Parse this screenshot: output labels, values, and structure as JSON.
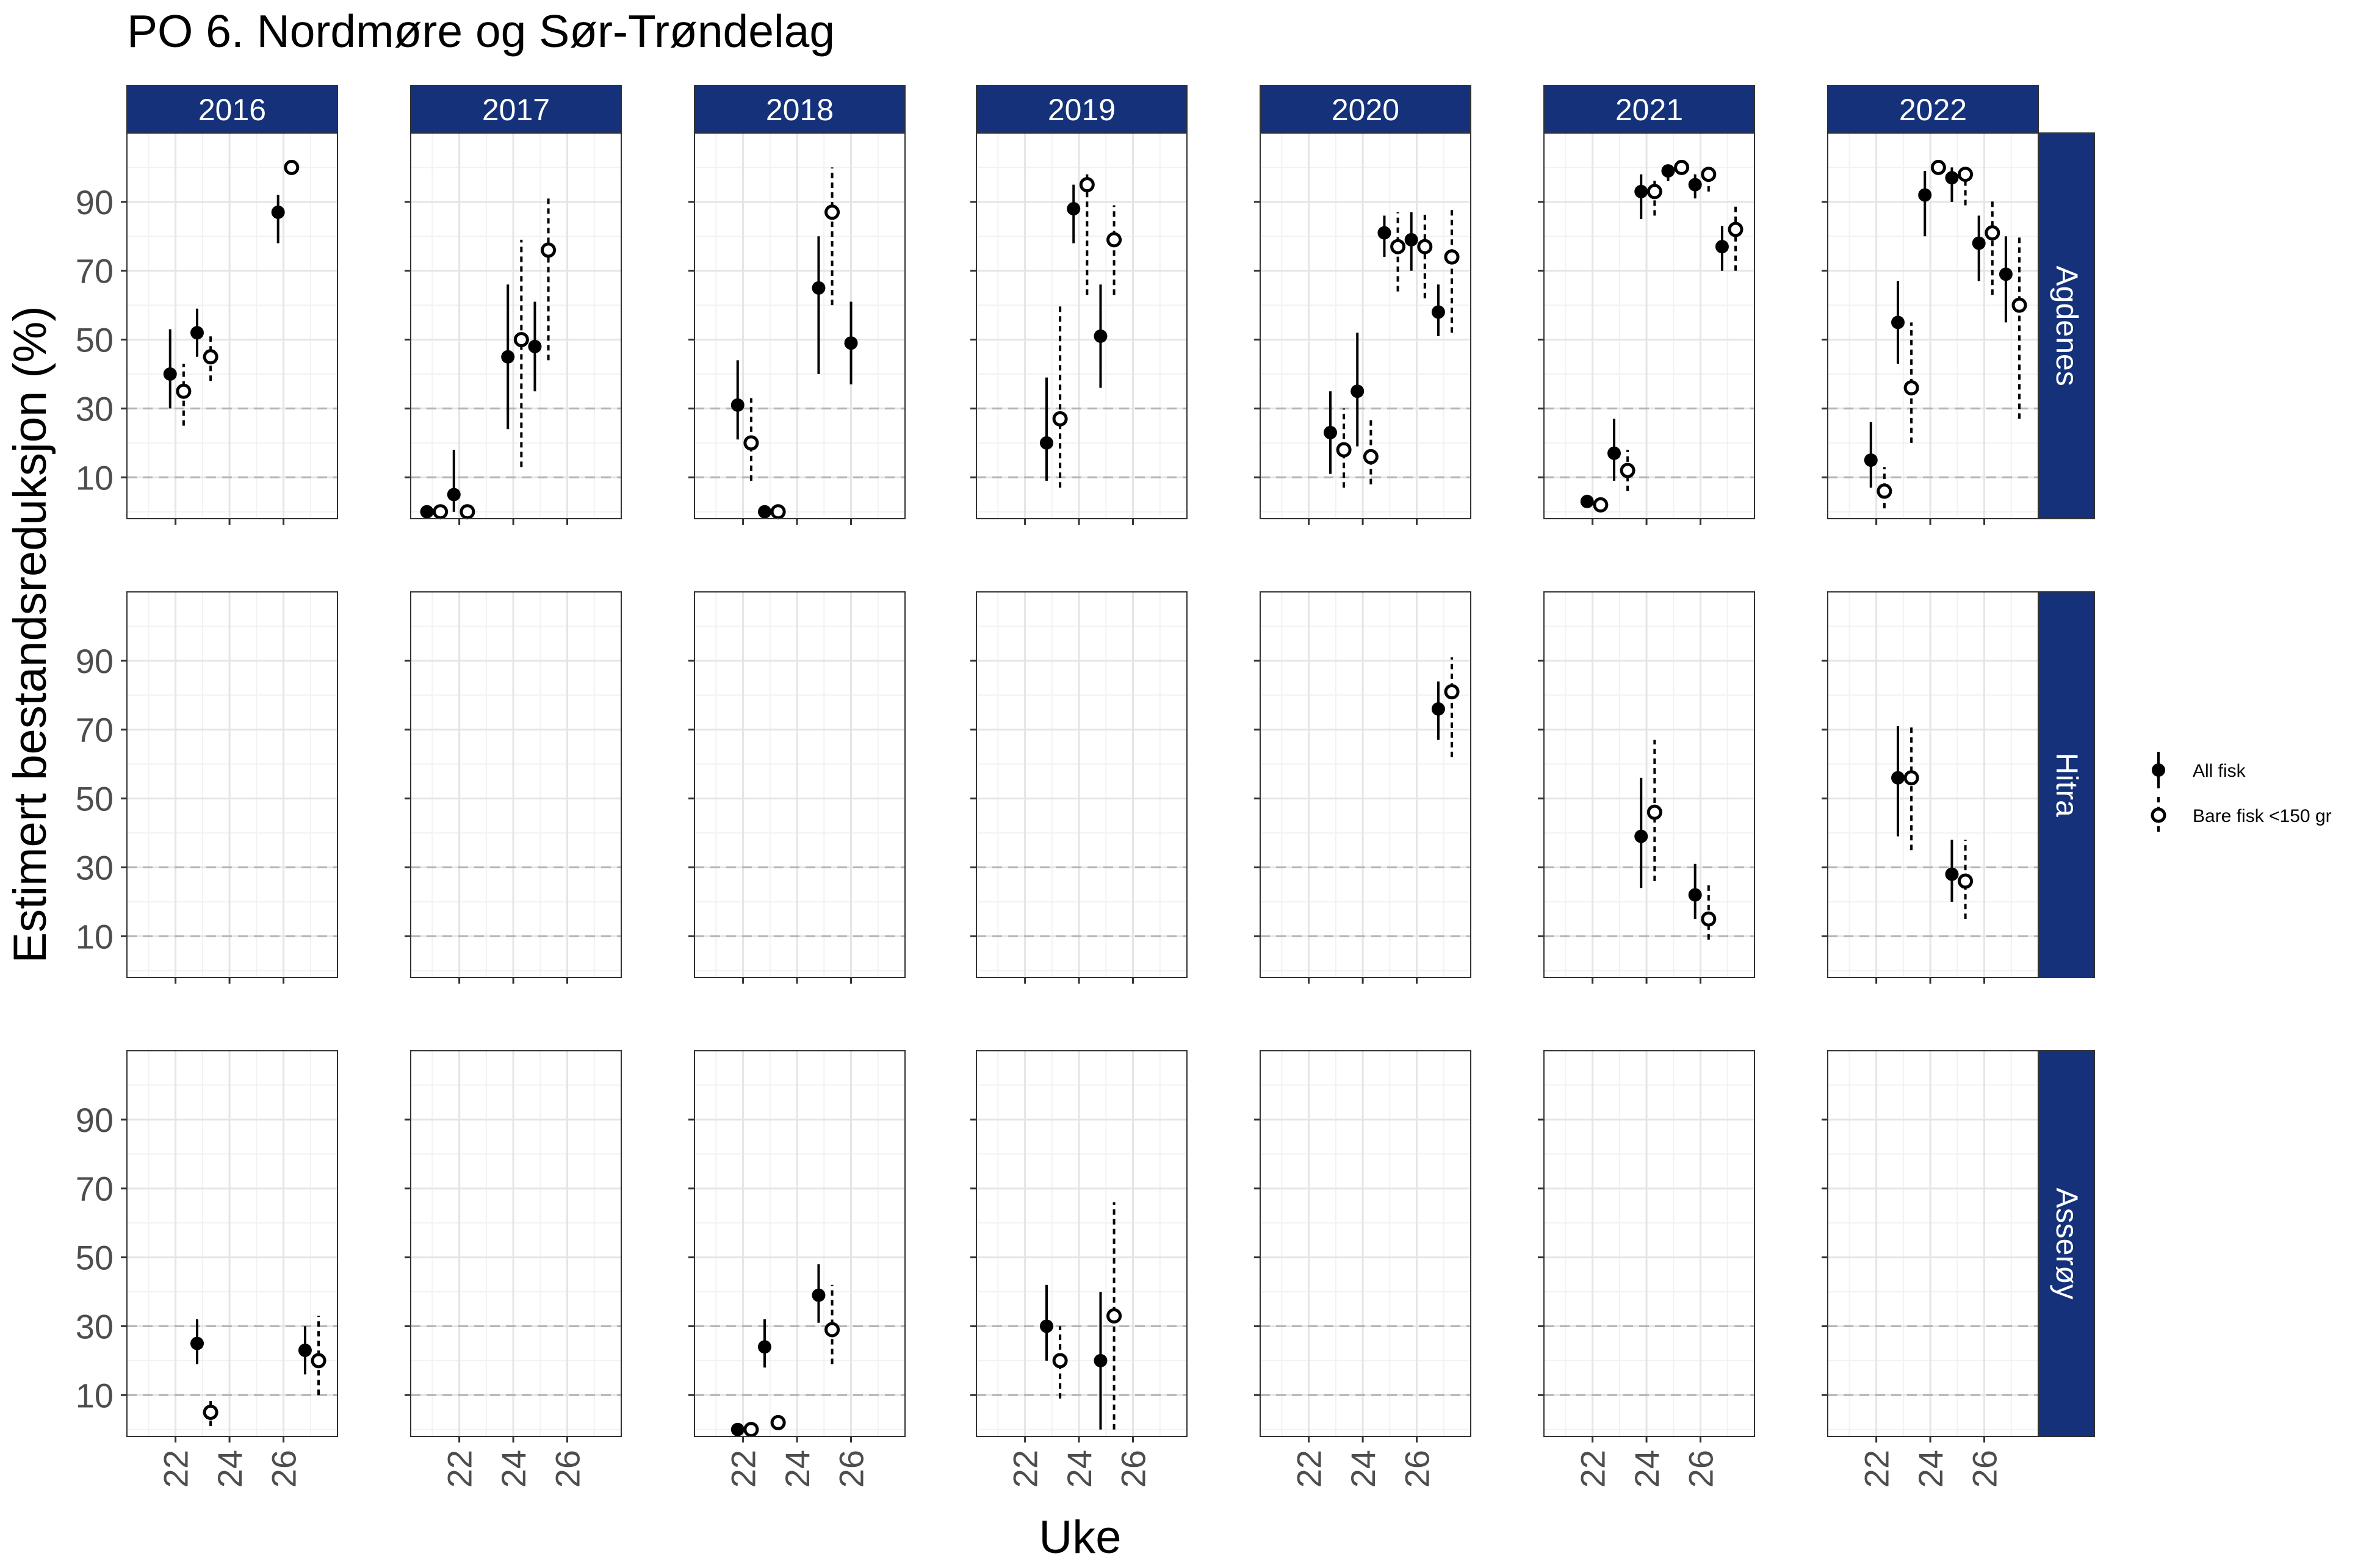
{
  "title": "PO 6. Nordmøre og Sør-Trøndelag",
  "chart_data": {
    "type": "scatter",
    "title": "PO 6. Nordmøre og Sør-Trøndelag",
    "xlabel": "Uke",
    "ylabel": "Estimert bestandsreduksjon (%)",
    "xlim": [
      20.2,
      28
    ],
    "ylim": [
      -2,
      110
    ],
    "xticks": [
      22,
      24,
      26
    ],
    "yticks": [
      10,
      30,
      50,
      70,
      90
    ],
    "reference_lines": [
      10,
      30
    ],
    "legend_position": "right",
    "years": [
      "2016",
      "2017",
      "2018",
      "2019",
      "2020",
      "2021",
      "2022"
    ],
    "locations": [
      "Agdenes",
      "Hitra",
      "Asserøy"
    ],
    "legend": {
      "all": "All fisk",
      "small": "Bare fisk <150 gr"
    },
    "series": [
      {
        "location": "Agdenes",
        "panels": [
          {
            "year": "2016",
            "points": [
              {
                "type": "all",
                "x": 21.8,
                "y": 40,
                "lo": 30,
                "hi": 53
              },
              {
                "type": "small",
                "x": 22.3,
                "y": 35,
                "lo": 25,
                "hi": 43
              },
              {
                "type": "all",
                "x": 22.8,
                "y": 52,
                "lo": 45,
                "hi": 59
              },
              {
                "type": "small",
                "x": 23.3,
                "y": 45,
                "lo": 38,
                "hi": 52
              },
              {
                "type": "all",
                "x": 25.8,
                "y": 87,
                "lo": 78,
                "hi": 92
              },
              {
                "type": "small",
                "x": 26.3,
                "y": 100,
                "lo": 100,
                "hi": 100
              }
            ]
          },
          {
            "year": "2017",
            "points": [
              {
                "type": "all",
                "x": 20.8,
                "y": 0,
                "lo": 0,
                "hi": 0
              },
              {
                "type": "small",
                "x": 21.3,
                "y": 0,
                "lo": 0,
                "hi": 0
              },
              {
                "type": "all",
                "x": 21.8,
                "y": 5,
                "lo": 0,
                "hi": 18
              },
              {
                "type": "small",
                "x": 22.3,
                "y": 0,
                "lo": 0,
                "hi": 0
              },
              {
                "type": "all",
                "x": 23.8,
                "y": 45,
                "lo": 24,
                "hi": 66
              },
              {
                "type": "small",
                "x": 24.3,
                "y": 50,
                "lo": 13,
                "hi": 79
              },
              {
                "type": "all",
                "x": 24.8,
                "y": 48,
                "lo": 35,
                "hi": 61
              },
              {
                "type": "small",
                "x": 25.3,
                "y": 76,
                "lo": 44,
                "hi": 92
              }
            ]
          },
          {
            "year": "2018",
            "points": [
              {
                "type": "all",
                "x": 21.8,
                "y": 31,
                "lo": 21,
                "hi": 44
              },
              {
                "type": "small",
                "x": 22.3,
                "y": 20,
                "lo": 9,
                "hi": 33
              },
              {
                "type": "all",
                "x": 22.8,
                "y": 0,
                "lo": 0,
                "hi": 0
              },
              {
                "type": "small",
                "x": 23.3,
                "y": 0,
                "lo": 0,
                "hi": 0
              },
              {
                "type": "all",
                "x": 24.8,
                "y": 65,
                "lo": 40,
                "hi": 80
              },
              {
                "type": "small",
                "x": 25.3,
                "y": 87,
                "lo": 60,
                "hi": 100
              },
              {
                "type": "all",
                "x": 26.0,
                "y": 49,
                "lo": 37,
                "hi": 61
              }
            ]
          },
          {
            "year": "2019",
            "points": [
              {
                "type": "all",
                "x": 22.8,
                "y": 20,
                "lo": 9,
                "hi": 39
              },
              {
                "type": "small",
                "x": 23.3,
                "y": 27,
                "lo": 7,
                "hi": 60
              },
              {
                "type": "all",
                "x": 23.8,
                "y": 88,
                "lo": 78,
                "hi": 95
              },
              {
                "type": "small",
                "x": 24.3,
                "y": 95,
                "lo": 63,
                "hi": 98
              },
              {
                "type": "all",
                "x": 24.8,
                "y": 51,
                "lo": 36,
                "hi": 66
              },
              {
                "type": "small",
                "x": 25.3,
                "y": 79,
                "lo": 63,
                "hi": 89
              }
            ]
          },
          {
            "year": "2020",
            "points": [
              {
                "type": "all",
                "x": 22.8,
                "y": 23,
                "lo": 11,
                "hi": 35
              },
              {
                "type": "small",
                "x": 23.3,
                "y": 18,
                "lo": 7,
                "hi": 30
              },
              {
                "type": "all",
                "x": 23.8,
                "y": 35,
                "lo": 19,
                "hi": 52
              },
              {
                "type": "small",
                "x": 24.3,
                "y": 16,
                "lo": 8,
                "hi": 27
              },
              {
                "type": "all",
                "x": 24.8,
                "y": 81,
                "lo": 74,
                "hi": 86
              },
              {
                "type": "small",
                "x": 25.3,
                "y": 77,
                "lo": 64,
                "hi": 87
              },
              {
                "type": "all",
                "x": 25.8,
                "y": 79,
                "lo": 70,
                "hi": 87
              },
              {
                "type": "small",
                "x": 26.3,
                "y": 77,
                "lo": 62,
                "hi": 87
              },
              {
                "type": "all",
                "x": 26.8,
                "y": 58,
                "lo": 51,
                "hi": 66
              },
              {
                "type": "small",
                "x": 27.3,
                "y": 74,
                "lo": 52,
                "hi": 88
              }
            ]
          },
          {
            "year": "2021",
            "points": [
              {
                "type": "all",
                "x": 21.8,
                "y": 3,
                "lo": 2,
                "hi": 4
              },
              {
                "type": "small",
                "x": 22.3,
                "y": 2,
                "lo": 1,
                "hi": 3
              },
              {
                "type": "all",
                "x": 22.8,
                "y": 17,
                "lo": 9,
                "hi": 27
              },
              {
                "type": "small",
                "x": 23.3,
                "y": 12,
                "lo": 6,
                "hi": 18
              },
              {
                "type": "all",
                "x": 23.8,
                "y": 93,
                "lo": 85,
                "hi": 98
              },
              {
                "type": "small",
                "x": 24.3,
                "y": 93,
                "lo": 86,
                "hi": 97
              },
              {
                "type": "all",
                "x": 24.8,
                "y": 99,
                "lo": 96,
                "hi": 100
              },
              {
                "type": "small",
                "x": 25.3,
                "y": 100,
                "lo": 100,
                "hi": 100
              },
              {
                "type": "all",
                "x": 25.8,
                "y": 95,
                "lo": 91,
                "hi": 98
              },
              {
                "type": "small",
                "x": 26.3,
                "y": 98,
                "lo": 93,
                "hi": 100
              },
              {
                "type": "all",
                "x": 26.8,
                "y": 77,
                "lo": 70,
                "hi": 83
              },
              {
                "type": "small",
                "x": 27.3,
                "y": 82,
                "lo": 70,
                "hi": 89
              }
            ]
          },
          {
            "year": "2022",
            "points": [
              {
                "type": "all",
                "x": 21.8,
                "y": 15,
                "lo": 7,
                "hi": 26
              },
              {
                "type": "small",
                "x": 22.3,
                "y": 6,
                "lo": 1,
                "hi": 13
              },
              {
                "type": "all",
                "x": 22.8,
                "y": 55,
                "lo": 43,
                "hi": 67
              },
              {
                "type": "small",
                "x": 23.3,
                "y": 36,
                "lo": 20,
                "hi": 55
              },
              {
                "type": "all",
                "x": 23.8,
                "y": 92,
                "lo": 80,
                "hi": 99
              },
              {
                "type": "small",
                "x": 24.3,
                "y": 100,
                "lo": 100,
                "hi": 100
              },
              {
                "type": "all",
                "x": 24.8,
                "y": 97,
                "lo": 90,
                "hi": 100
              },
              {
                "type": "small",
                "x": 25.3,
                "y": 98,
                "lo": 89,
                "hi": 100
              },
              {
                "type": "all",
                "x": 25.8,
                "y": 78,
                "lo": 67,
                "hi": 86
              },
              {
                "type": "small",
                "x": 26.3,
                "y": 81,
                "lo": 63,
                "hi": 91
              },
              {
                "type": "all",
                "x": 26.8,
                "y": 69,
                "lo": 55,
                "hi": 80
              },
              {
                "type": "small",
                "x": 27.3,
                "y": 60,
                "lo": 27,
                "hi": 80
              }
            ]
          }
        ]
      },
      {
        "location": "Hitra",
        "panels": [
          {
            "year": "2016",
            "points": []
          },
          {
            "year": "2017",
            "points": []
          },
          {
            "year": "2018",
            "points": []
          },
          {
            "year": "2019",
            "points": []
          },
          {
            "year": "2020",
            "points": [
              {
                "type": "all",
                "x": 26.8,
                "y": 76,
                "lo": 67,
                "hi": 84
              },
              {
                "type": "small",
                "x": 27.3,
                "y": 81,
                "lo": 62,
                "hi": 91
              }
            ]
          },
          {
            "year": "2021",
            "points": [
              {
                "type": "all",
                "x": 23.8,
                "y": 39,
                "lo": 24,
                "hi": 56
              },
              {
                "type": "small",
                "x": 24.3,
                "y": 46,
                "lo": 26,
                "hi": 67
              },
              {
                "type": "all",
                "x": 25.8,
                "y": 22,
                "lo": 15,
                "hi": 31
              },
              {
                "type": "small",
                "x": 26.3,
                "y": 15,
                "lo": 9,
                "hi": 26
              }
            ]
          },
          {
            "year": "2022",
            "points": [
              {
                "type": "all",
                "x": 22.8,
                "y": 56,
                "lo": 39,
                "hi": 71
              },
              {
                "type": "small",
                "x": 23.3,
                "y": 56,
                "lo": 35,
                "hi": 71
              },
              {
                "type": "all",
                "x": 24.8,
                "y": 28,
                "lo": 20,
                "hi": 38
              },
              {
                "type": "small",
                "x": 25.3,
                "y": 26,
                "lo": 15,
                "hi": 38
              }
            ]
          }
        ]
      },
      {
        "location": "Asserøy",
        "panels": [
          {
            "year": "2016",
            "points": [
              {
                "type": "all",
                "x": 22.8,
                "y": 25,
                "lo": 19,
                "hi": 32
              },
              {
                "type": "small",
                "x": 23.3,
                "y": 5,
                "lo": 1,
                "hi": 9
              },
              {
                "type": "all",
                "x": 26.8,
                "y": 23,
                "lo": 16,
                "hi": 30
              },
              {
                "type": "small",
                "x": 27.3,
                "y": 20,
                "lo": 10,
                "hi": 33
              }
            ]
          },
          {
            "year": "2017",
            "points": []
          },
          {
            "year": "2018",
            "points": [
              {
                "type": "all",
                "x": 21.8,
                "y": 0,
                "lo": 0,
                "hi": 0
              },
              {
                "type": "small",
                "x": 22.3,
                "y": 0,
                "lo": 0,
                "hi": 0
              },
              {
                "type": "all",
                "x": 22.8,
                "y": 24,
                "lo": 18,
                "hi": 32
              },
              {
                "type": "small",
                "x": 23.3,
                "y": 2,
                "lo": 0,
                "hi": 4
              },
              {
                "type": "all",
                "x": 24.8,
                "y": 39,
                "lo": 31,
                "hi": 48
              },
              {
                "type": "small",
                "x": 25.3,
                "y": 29,
                "lo": 19,
                "hi": 42
              }
            ]
          },
          {
            "year": "2019",
            "points": [
              {
                "type": "all",
                "x": 22.8,
                "y": 30,
                "lo": 20,
                "hi": 42
              },
              {
                "type": "small",
                "x": 23.3,
                "y": 20,
                "lo": 9,
                "hi": 30
              },
              {
                "type": "all",
                "x": 24.8,
                "y": 20,
                "lo": 0,
                "hi": 40
              },
              {
                "type": "small",
                "x": 25.3,
                "y": 33,
                "lo": 0,
                "hi": 66
              }
            ]
          },
          {
            "year": "2020",
            "points": []
          },
          {
            "year": "2021",
            "points": []
          },
          {
            "year": "2022",
            "points": []
          }
        ]
      }
    ]
  },
  "colors": {
    "strip": "#14317a",
    "strip_text": "#ffffff",
    "grid_major": "#e5e5e5",
    "grid_minor": "#f2f2f2",
    "refline": "#b3b3b3",
    "panel_border": "#333333",
    "point": "#000000"
  }
}
